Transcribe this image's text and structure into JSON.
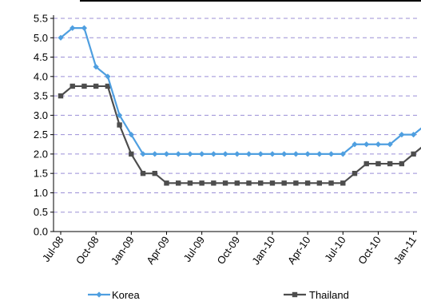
{
  "chart_data": {
    "type": "line",
    "title": "",
    "xlabel": "",
    "ylabel": "",
    "ylim": [
      0.0,
      5.5
    ],
    "y_ticks": [
      "0.0",
      "0.5",
      "1.0",
      "1.5",
      "2.0",
      "2.5",
      "3.0",
      "3.5",
      "4.0",
      "4.5",
      "5.0",
      "5.5"
    ],
    "x_tick_labels": [
      "Jul-08",
      "Oct-08",
      "Jan-09",
      "Apr-09",
      "Jul-09",
      "Oct-09",
      "Jan-10",
      "Apr-10",
      "Jul-10",
      "Oct-10",
      "Jan-11"
    ],
    "grid": "horizontal dashed",
    "legend_position": "bottom",
    "series": [
      {
        "name": "Korea",
        "color": "#4f9fe0",
        "marker": "diamond",
        "values": [
          5.0,
          5.25,
          5.25,
          4.25,
          4.0,
          3.0,
          2.5,
          2.0,
          2.0,
          2.0,
          2.0,
          2.0,
          2.0,
          2.0,
          2.0,
          2.0,
          2.0,
          2.0,
          2.0,
          2.0,
          2.0,
          2.0,
          2.0,
          2.0,
          2.0,
          2.25,
          2.25,
          2.25,
          2.25,
          2.5,
          2.5,
          2.75
        ]
      },
      {
        "name": "Thailand",
        "color": "#4d4d4d",
        "marker": "square",
        "values": [
          3.5,
          3.75,
          3.75,
          3.75,
          3.75,
          2.75,
          2.0,
          1.5,
          1.5,
          1.25,
          1.25,
          1.25,
          1.25,
          1.25,
          1.25,
          1.25,
          1.25,
          1.25,
          1.25,
          1.25,
          1.25,
          1.25,
          1.25,
          1.25,
          1.25,
          1.5,
          1.75,
          1.75,
          1.75,
          1.75,
          2.0,
          2.25
        ]
      }
    ]
  }
}
